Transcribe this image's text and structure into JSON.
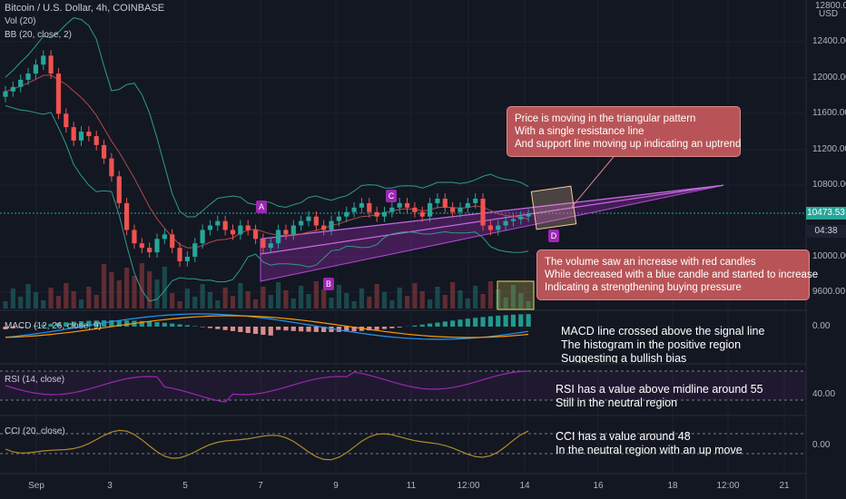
{
  "header": {
    "symbol_line": "Bitcoin / U.S. Dollar, 4h, COINBASE",
    "vol_label": "Vol (20)",
    "bb_label": "BB (20, close, 2)",
    "macd_label": "MACD (12, 26, close, 9)",
    "rsi_label": "RSI (14, close)",
    "cci_label": "CCI (20, close)",
    "currency": "USD"
  },
  "price_axis": {
    "ticks": [
      "12800.00",
      "12400.00",
      "12000.00",
      "11600.00",
      "11200.00",
      "10800.00",
      "10000.00",
      "9600.00"
    ],
    "last_price": "10473.53",
    "countdown": "04:38",
    "macd_zero": "0.00",
    "rsi_level": "40.00",
    "cci_zero": "0.00"
  },
  "time_axis": [
    "Sep",
    "3",
    "5",
    "7",
    "9",
    "11",
    "12:00",
    "14",
    "16",
    "18",
    "12:00",
    "21"
  ],
  "pattern_points": [
    "A",
    "B",
    "C",
    "D"
  ],
  "annotations": {
    "triangle_note": [
      "Price is moving in the triangular pattern",
      "With a single resistance line",
      "And support line moving up indicating an uptrend"
    ],
    "volume_note": [
      "The volume saw an increase with red candles",
      "While decreased with a blue candle and started to increase",
      "Indicating a strengthening buying pressure"
    ],
    "macd_note": [
      "MACD line crossed above the signal line",
      "The histogram in the positive region",
      "Suggesting a bullish bias"
    ],
    "rsi_note": [
      "RSI has a value above midline around 55",
      "Still in the neutral region"
    ],
    "cci_note": [
      "CCI has a value around 48",
      "In the neutral region with an up move"
    ]
  },
  "colors": {
    "background": "#131722",
    "up": "#26a69a",
    "down": "#ef5350",
    "bb_band": "#2c9c8a",
    "bb_basis": "#b04a4a",
    "triangle_fill": "#9c27b0",
    "macd_line": "#2196f3",
    "signal_line": "#ff9800",
    "rsi_line": "#9c27b0",
    "cci_line": "#b08a2a",
    "note_bg": "#b85457"
  },
  "chart_data": {
    "type": "candlestick",
    "symbol": "BTC/USD",
    "timeframe": "4h",
    "exchange": "COINBASE",
    "ylim": [
      9400,
      12800
    ],
    "close_series": [
      11850,
      11900,
      11980,
      12050,
      12150,
      12250,
      12050,
      11600,
      11450,
      11300,
      11400,
      11350,
      11250,
      11100,
      10900,
      10600,
      10300,
      10150,
      10100,
      10050,
      10200,
      10250,
      10100,
      9950,
      10000,
      10150,
      10300,
      10350,
      10400,
      10300,
      10250,
      10350,
      10300,
      10200,
      10100,
      10150,
      10300,
      10250,
      10350,
      10400,
      10450,
      10350,
      10300,
      10400,
      10450,
      10500,
      10550,
      10600,
      10500,
      10450,
      10500,
      10550,
      10600,
      10550,
      10500,
      10450,
      10600,
      10650,
      10550,
      10500,
      10550,
      10600,
      10650,
      10350,
      10300,
      10350,
      10400,
      10420,
      10450,
      10473.53
    ],
    "last_price": 10473.53,
    "triangle": {
      "apex_price": 10800,
      "resistance_start": 10200,
      "support_start": 9800
    },
    "indicators": {
      "rsi_current": 55,
      "cci_current": 48,
      "rsi_levels": [
        40
      ]
    }
  }
}
